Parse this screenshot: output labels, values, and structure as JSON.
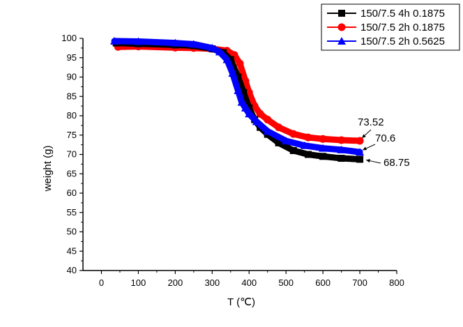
{
  "chart_data": {
    "type": "line",
    "xlabel": "T (℃)",
    "ylabel": "weight  (g)",
    "xlim": [
      -50,
      800
    ],
    "ylim": [
      40,
      100
    ],
    "xticks": [
      0,
      100,
      200,
      300,
      400,
      500,
      600,
      700,
      800
    ],
    "yticks": [
      40,
      45,
      50,
      55,
      60,
      65,
      70,
      75,
      80,
      85,
      90,
      95,
      100
    ],
    "grid": false,
    "legend_position": "top-right",
    "series": [
      {
        "name": "150/7.5 4h 0.1875",
        "color": "#000000",
        "marker": "square",
        "x": [
          40,
          100,
          200,
          250,
          300,
          330,
          350,
          370,
          385,
          400,
          415,
          430,
          450,
          480,
          520,
          560,
          600,
          650,
          700
        ],
        "y": [
          98.8,
          98.6,
          98.3,
          98.1,
          97.3,
          96.3,
          94.5,
          90.0,
          86.0,
          82.0,
          79.0,
          77.0,
          75.2,
          73.0,
          71.0,
          70.0,
          69.5,
          69.0,
          68.75
        ]
      },
      {
        "name": "150/7.5 2h 0.1875",
        "color": "#ff0000",
        "marker": "circle",
        "x": [
          45,
          100,
          200,
          250,
          300,
          340,
          360,
          375,
          390,
          400,
          415,
          430,
          450,
          480,
          520,
          560,
          600,
          650,
          700
        ],
        "y": [
          97.8,
          97.9,
          97.6,
          97.5,
          97.3,
          96.8,
          95.7,
          93.5,
          89.0,
          86.0,
          82.5,
          80.5,
          79.0,
          77.0,
          75.3,
          74.4,
          74.0,
          73.7,
          73.52
        ]
      },
      {
        "name": "150/7.5 2h 0.5625",
        "color": "#0000ff",
        "marker": "triangle",
        "x": [
          35,
          100,
          200,
          250,
          300,
          320,
          340,
          355,
          370,
          380,
          390,
          400,
          420,
          450,
          500,
          550,
          600,
          650,
          700
        ],
        "y": [
          99.3,
          99.2,
          98.8,
          98.5,
          97.5,
          96.5,
          94.5,
          91.0,
          86.5,
          83.5,
          82.0,
          80.5,
          78.5,
          76.0,
          73.5,
          72.3,
          71.6,
          71.2,
          70.6
        ]
      }
    ],
    "annotations": [
      {
        "text": "73.52",
        "x": 700,
        "y": 73.52
      },
      {
        "text": "70.6",
        "x": 700,
        "y": 70.6
      },
      {
        "text": "68.75",
        "x": 700,
        "y": 68.75
      }
    ]
  }
}
